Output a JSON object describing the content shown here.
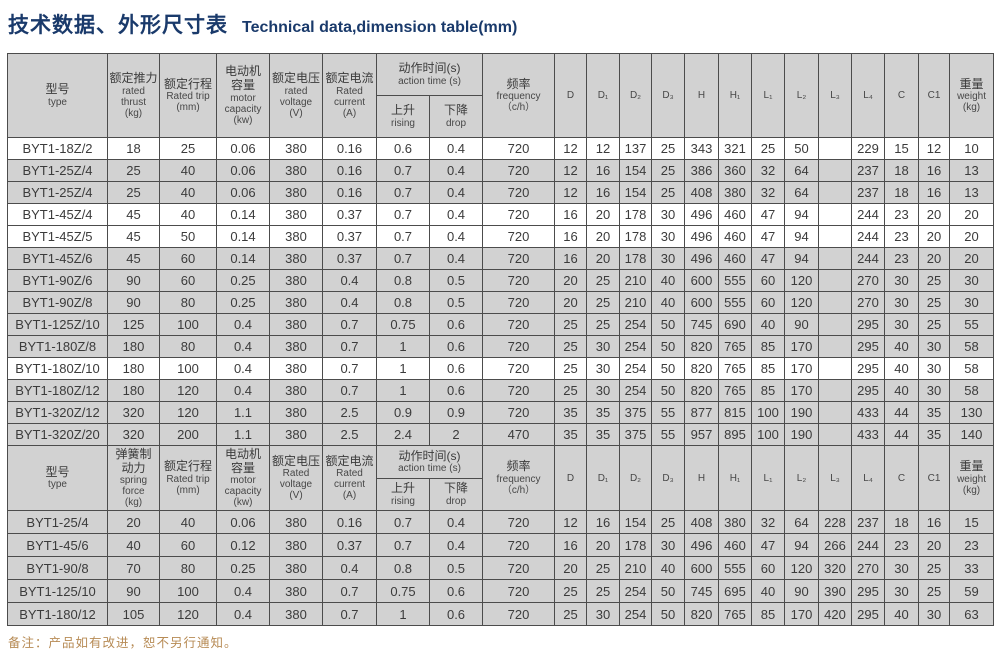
{
  "page": {
    "title_zh": "技术数据、外形尺寸表",
    "title_en": "Technical data,dimension table(mm)",
    "note": "备注：产品如有改进，恕不另行通知。",
    "colors": {
      "title": "#1a3a6b",
      "note": "#b78b55",
      "row_gray": "#d2d2d2",
      "row_white": "#ffffff",
      "border": "#4c4c4c",
      "text": "#3b3b3b"
    }
  },
  "table": {
    "sections": [
      {
        "name": "pusher-type-section",
        "header_cols": [
          {
            "lines": [
              "型号",
              "type"
            ]
          },
          {
            "lines": [
              "额定推力",
              "rated thrust",
              "(kg)"
            ]
          },
          {
            "lines": [
              "额定行程",
              "Rated trip",
              "(mm)"
            ]
          },
          {
            "lines": [
              "电动机",
              "容量",
              "motor",
              "capacity",
              "(kw)"
            ]
          },
          {
            "lines": [
              "额定电压",
              "rated voltage",
              "(V)"
            ]
          },
          {
            "lines": [
              "额定电流",
              "Rated current",
              "(A)"
            ]
          },
          {
            "lines": [
              "动作时间(s)",
              "action time (s)"
            ],
            "sub": [
              [
                "上升",
                "rising"
              ],
              [
                "下降",
                "drop"
              ]
            ]
          },
          {
            "lines": [
              "频率",
              "frequency",
              "（c/h）"
            ]
          },
          {
            "lines": [
              "D"
            ]
          },
          {
            "lines": [
              "D₁"
            ]
          },
          {
            "lines": [
              "D₂"
            ]
          },
          {
            "lines": [
              "D₃"
            ]
          },
          {
            "lines": [
              "H"
            ]
          },
          {
            "lines": [
              "H₁"
            ]
          },
          {
            "lines": [
              "L₁"
            ]
          },
          {
            "lines": [
              "L₂"
            ]
          },
          {
            "lines": [
              "L₃"
            ]
          },
          {
            "lines": [
              "L₄"
            ]
          },
          {
            "lines": [
              "C"
            ]
          },
          {
            "lines": [
              "C1"
            ]
          },
          {
            "lines": [
              "重量",
              "weight",
              "(kg)"
            ]
          }
        ],
        "rows": [
          {
            "shade": "w",
            "cells": [
              "BYT1-18Z/2",
              "18",
              "25",
              "0.06",
              "380",
              "0.16",
              "0.6",
              "0.4",
              "720",
              "12",
              "12",
              "137",
              "25",
              "343",
              "321",
              "25",
              "50",
              "",
              "229",
              "15",
              "12",
              "10"
            ]
          },
          {
            "shade": "g",
            "cells": [
              "BYT1-25Z/4",
              "25",
              "40",
              "0.06",
              "380",
              "0.16",
              "0.7",
              "0.4",
              "720",
              "12",
              "16",
              "154",
              "25",
              "386",
              "360",
              "32",
              "64",
              "",
              "237",
              "18",
              "16",
              "13"
            ]
          },
          {
            "shade": "g",
            "cells": [
              "BYT1-25Z/4",
              "25",
              "40",
              "0.06",
              "380",
              "0.16",
              "0.7",
              "0.4",
              "720",
              "12",
              "16",
              "154",
              "25",
              "408",
              "380",
              "32",
              "64",
              "",
              "237",
              "18",
              "16",
              "13"
            ]
          },
          {
            "shade": "w",
            "cells": [
              "BYT1-45Z/4",
              "45",
              "40",
              "0.14",
              "380",
              "0.37",
              "0.7",
              "0.4",
              "720",
              "16",
              "20",
              "178",
              "30",
              "496",
              "460",
              "47",
              "94",
              "",
              "244",
              "23",
              "20",
              "20"
            ]
          },
          {
            "shade": "w",
            "cells": [
              "BYT1-45Z/5",
              "45",
              "50",
              "0.14",
              "380",
              "0.37",
              "0.7",
              "0.4",
              "720",
              "16",
              "20",
              "178",
              "30",
              "496",
              "460",
              "47",
              "94",
              "",
              "244",
              "23",
              "20",
              "20"
            ]
          },
          {
            "shade": "g",
            "cells": [
              "BYT1-45Z/6",
              "45",
              "60",
              "0.14",
              "380",
              "0.37",
              "0.7",
              "0.4",
              "720",
              "16",
              "20",
              "178",
              "30",
              "496",
              "460",
              "47",
              "94",
              "",
              "244",
              "23",
              "20",
              "20"
            ]
          },
          {
            "shade": "g",
            "cells": [
              "BYT1-90Z/6",
              "90",
              "60",
              "0.25",
              "380",
              "0.4",
              "0.8",
              "0.5",
              "720",
              "20",
              "25",
              "210",
              "40",
              "600",
              "555",
              "60",
              "120",
              "",
              "270",
              "30",
              "25",
              "30"
            ]
          },
          {
            "shade": "g",
            "cells": [
              "BYT1-90Z/8",
              "90",
              "80",
              "0.25",
              "380",
              "0.4",
              "0.8",
              "0.5",
              "720",
              "20",
              "25",
              "210",
              "40",
              "600",
              "555",
              "60",
              "120",
              "",
              "270",
              "30",
              "25",
              "30"
            ]
          },
          {
            "shade": "g",
            "cells": [
              "BYT1-125Z/10",
              "125",
              "100",
              "0.4",
              "380",
              "0.7",
              "0.75",
              "0.6",
              "720",
              "25",
              "25",
              "254",
              "50",
              "745",
              "690",
              "40",
              "90",
              "",
              "295",
              "30",
              "25",
              "55"
            ]
          },
          {
            "shade": "g",
            "cells": [
              "BYT1-180Z/8",
              "180",
              "80",
              "0.4",
              "380",
              "0.7",
              "1",
              "0.6",
              "720",
              "25",
              "30",
              "254",
              "50",
              "820",
              "765",
              "85",
              "170",
              "",
              "295",
              "40",
              "30",
              "58"
            ]
          },
          {
            "shade": "w",
            "cells": [
              "BYT1-180Z/10",
              "180",
              "100",
              "0.4",
              "380",
              "0.7",
              "1",
              "0.6",
              "720",
              "25",
              "30",
              "254",
              "50",
              "820",
              "765",
              "85",
              "170",
              "",
              "295",
              "40",
              "30",
              "58"
            ]
          },
          {
            "shade": "g",
            "cells": [
              "BYT1-180Z/12",
              "180",
              "120",
              "0.4",
              "380",
              "0.7",
              "1",
              "0.6",
              "720",
              "25",
              "30",
              "254",
              "50",
              "820",
              "765",
              "85",
              "170",
              "",
              "295",
              "40",
              "30",
              "58"
            ]
          },
          {
            "shade": "g",
            "cells": [
              "BYT1-320Z/12",
              "320",
              "120",
              "1.1",
              "380",
              "2.5",
              "0.9",
              "0.9",
              "720",
              "35",
              "35",
              "375",
              "55",
              "877",
              "815",
              "100",
              "190",
              "",
              "433",
              "44",
              "35",
              "130"
            ]
          },
          {
            "shade": "g",
            "cells": [
              "BYT1-320Z/20",
              "320",
              "200",
              "1.1",
              "380",
              "2.5",
              "2.4",
              "2",
              "470",
              "35",
              "35",
              "375",
              "55",
              "957",
              "895",
              "100",
              "190",
              "",
              "433",
              "44",
              "35",
              "140"
            ]
          }
        ]
      },
      {
        "name": "spring-type-section",
        "header_cols": [
          {
            "lines": [
              "型号",
              "type"
            ]
          },
          {
            "lines": [
              "弹簧制",
              "动力",
              "spring",
              "force",
              "(kg)"
            ]
          },
          {
            "lines": [
              "额定行程",
              "Rated trip",
              "(mm)"
            ]
          },
          {
            "lines": [
              "电动机",
              "容量",
              "motor",
              "capacity",
              "(kw)"
            ]
          },
          {
            "lines": [
              "额定电压",
              "Rated voltage",
              "(V)"
            ]
          },
          {
            "lines": [
              "额定电流",
              "Rated current",
              "(A)"
            ]
          },
          {
            "lines": [
              "动作时间(s)",
              "action time (s)"
            ],
            "sub": [
              [
                "上升",
                "rising"
              ],
              [
                "下降",
                "drop"
              ]
            ]
          },
          {
            "lines": [
              "频率",
              "frequency",
              "（c/h）"
            ]
          },
          {
            "lines": [
              "D"
            ]
          },
          {
            "lines": [
              "D₁"
            ]
          },
          {
            "lines": [
              "D₂"
            ]
          },
          {
            "lines": [
              "D₃"
            ]
          },
          {
            "lines": [
              "H"
            ]
          },
          {
            "lines": [
              "H₁"
            ]
          },
          {
            "lines": [
              "L₁"
            ]
          },
          {
            "lines": [
              "L₂"
            ]
          },
          {
            "lines": [
              "L₃"
            ]
          },
          {
            "lines": [
              "L₄"
            ]
          },
          {
            "lines": [
              "C"
            ]
          },
          {
            "lines": [
              "C1"
            ]
          },
          {
            "lines": [
              "重量",
              "weight",
              "(kg)"
            ]
          }
        ],
        "rows": [
          {
            "shade": "g",
            "cells": [
              "BYT1-25/4",
              "20",
              "40",
              "0.06",
              "380",
              "0.16",
              "0.7",
              "0.4",
              "720",
              "12",
              "16",
              "154",
              "25",
              "408",
              "380",
              "32",
              "64",
              "228",
              "237",
              "18",
              "16",
              "15"
            ]
          },
          {
            "shade": "g",
            "cells": [
              "BYT1-45/6",
              "40",
              "60",
              "0.12",
              "380",
              "0.37",
              "0.7",
              "0.4",
              "720",
              "16",
              "20",
              "178",
              "30",
              "496",
              "460",
              "47",
              "94",
              "266",
              "244",
              "23",
              "20",
              "23"
            ]
          },
          {
            "shade": "g",
            "cells": [
              "BYT1-90/8",
              "70",
              "80",
              "0.25",
              "380",
              "0.4",
              "0.8",
              "0.5",
              "720",
              "20",
              "25",
              "210",
              "40",
              "600",
              "555",
              "60",
              "120",
              "320",
              "270",
              "30",
              "25",
              "33"
            ]
          },
          {
            "shade": "g",
            "cells": [
              "BYT1-125/10",
              "90",
              "100",
              "0.4",
              "380",
              "0.7",
              "0.75",
              "0.6",
              "720",
              "25",
              "25",
              "254",
              "50",
              "745",
              "695",
              "40",
              "90",
              "390",
              "295",
              "30",
              "25",
              "59"
            ]
          },
          {
            "shade": "g",
            "cells": [
              "BYT1-180/12",
              "105",
              "120",
              "0.4",
              "380",
              "0.7",
              "1",
              "0.6",
              "720",
              "25",
              "30",
              "254",
              "50",
              "820",
              "765",
              "85",
              "170",
              "420",
              "295",
              "40",
              "30",
              "63"
            ]
          }
        ]
      }
    ]
  }
}
